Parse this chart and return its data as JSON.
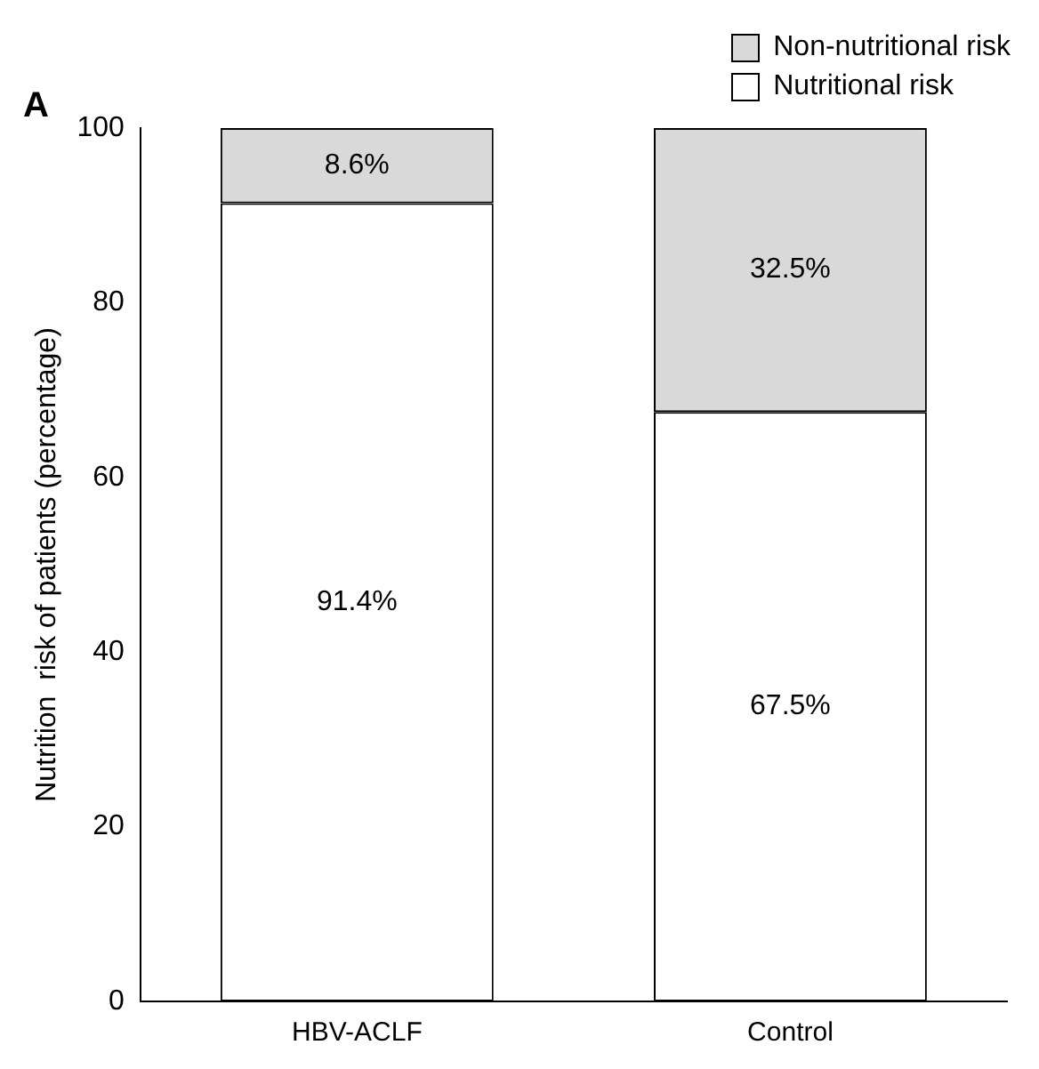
{
  "chart_data": {
    "type": "bar",
    "title": "A",
    "ylabel": "Nutrition  risk of patients (percentage)",
    "categories": [
      "HBV-ACLF",
      "Control"
    ],
    "stacked": true,
    "ylim": [
      0,
      100
    ],
    "yticks": [
      0,
      20,
      40,
      60,
      80,
      100
    ],
    "grid": false,
    "legend": "top right",
    "series": [
      {
        "name": "Nutritional risk",
        "color": "#ffffff",
        "values": [
          91.4,
          67.5
        ],
        "value_labels": [
          "91.4%",
          "67.5%"
        ]
      },
      {
        "name": "Non-nutritional risk",
        "color": "#d9d9d9",
        "values": [
          8.6,
          32.5
        ],
        "value_labels": [
          "8.6%",
          "32.5%"
        ]
      }
    ]
  }
}
